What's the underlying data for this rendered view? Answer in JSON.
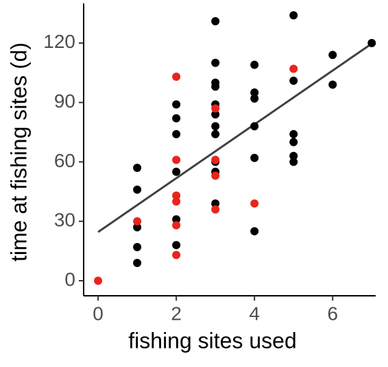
{
  "chart_data": {
    "type": "scatter",
    "xlabel": "fishing sites used",
    "ylabel": "time at fishing sites (d)",
    "xlim": [
      -0.37,
      7.1
    ],
    "ylim": [
      -7.6,
      140
    ],
    "xticks": [
      0,
      2,
      4,
      6
    ],
    "yticks": [
      0,
      30,
      60,
      90,
      120
    ],
    "series": [
      {
        "color": "#000000",
        "x": [
          1,
          1,
          1,
          1,
          1,
          2,
          2,
          2,
          2,
          2,
          2,
          3,
          3,
          3,
          3,
          3,
          3,
          3,
          3,
          3,
          3,
          3,
          4,
          4,
          4,
          4,
          4,
          4,
          5,
          5,
          5,
          5,
          5,
          5,
          6,
          6,
          7
        ],
        "y": [
          57,
          46,
          27,
          17,
          9,
          89,
          82,
          74,
          55,
          31,
          18,
          131,
          110,
          100,
          98,
          89,
          84,
          78,
          74,
          60,
          55,
          39,
          109,
          95,
          92,
          78,
          62,
          25,
          134,
          101,
          74,
          70,
          63,
          60,
          114,
          99,
          120
        ]
      },
      {
        "color": "#e8251b",
        "x": [
          0,
          1,
          2,
          2,
          2,
          2,
          2,
          2,
          3,
          3,
          3,
          3,
          4,
          5
        ],
        "y": [
          0,
          30,
          103,
          61,
          43,
          40,
          28,
          13,
          87,
          61,
          53,
          36,
          39,
          107
        ]
      }
    ],
    "trend": {
      "color": "#404040",
      "x": [
        0,
        7
      ],
      "y": [
        24.6,
        119.7
      ]
    }
  }
}
